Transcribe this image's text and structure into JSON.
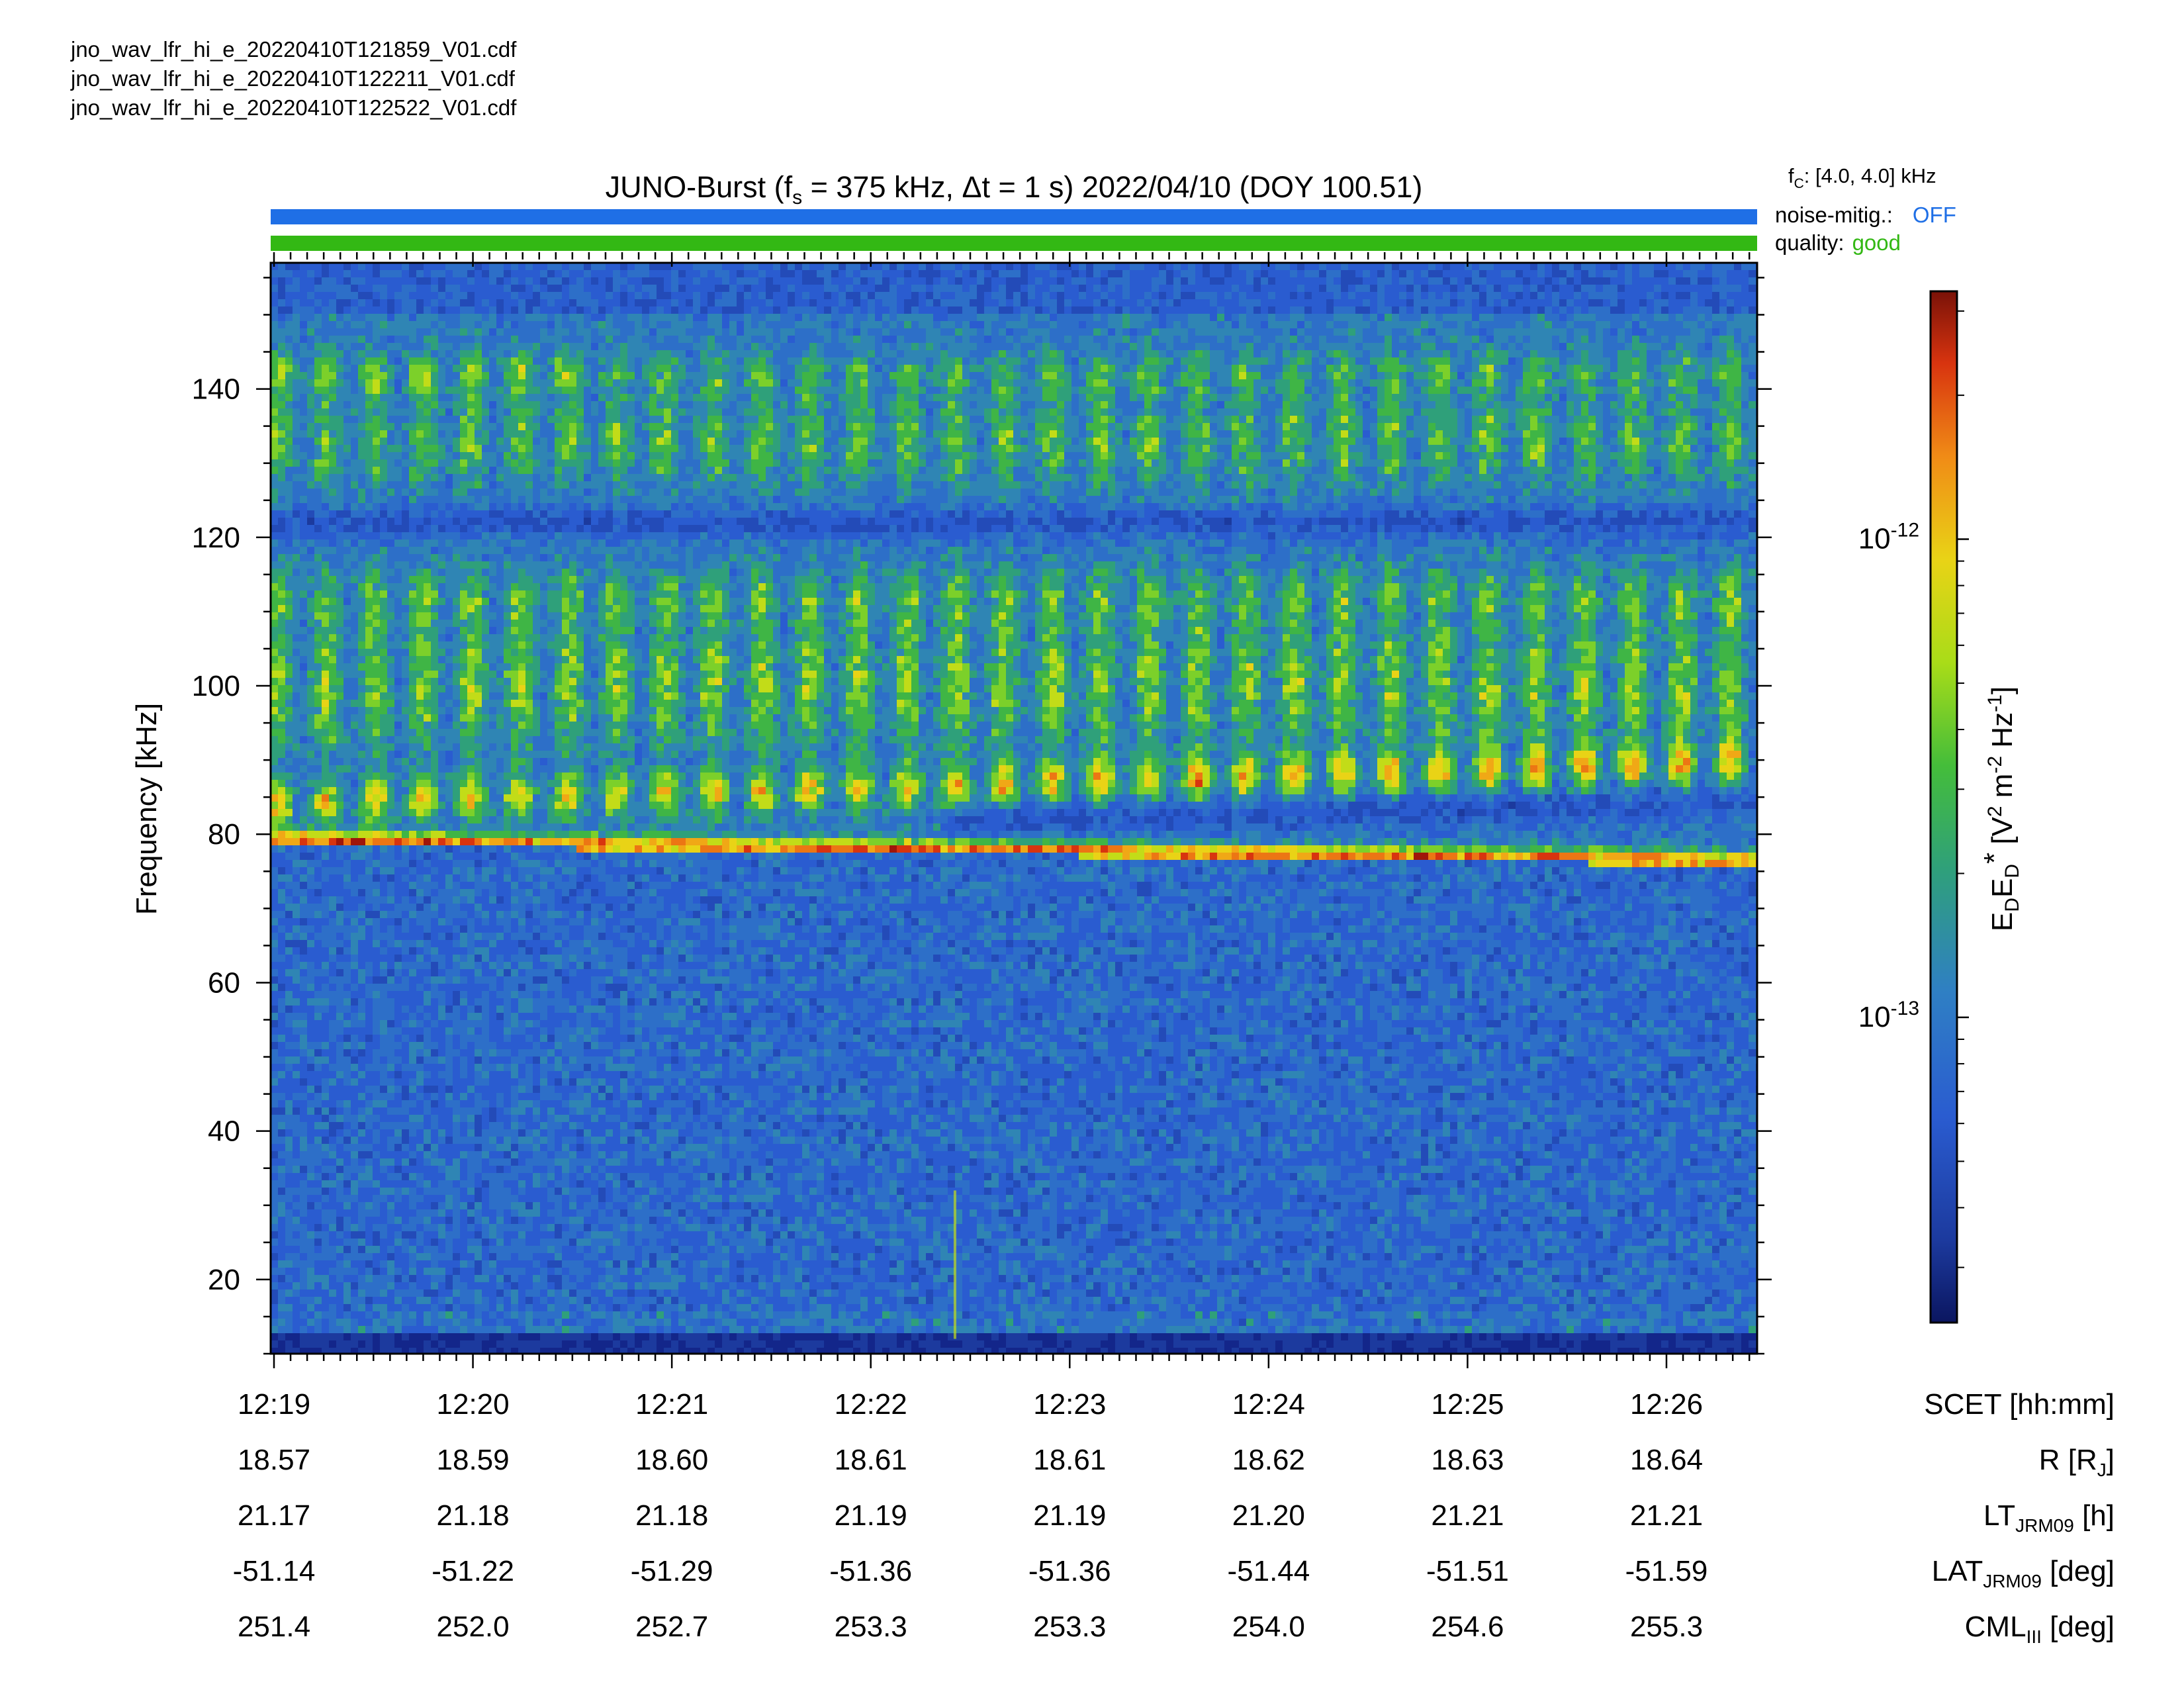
{
  "files": [
    "jno_wav_lfr_hi_e_20220410T121859_V01.cdf",
    "jno_wav_lfr_hi_e_20220410T122211_V01.cdf",
    "jno_wav_lfr_hi_e_20220410T122522_V01.cdf"
  ],
  "header": {
    "title_prefix": "JUNO-Burst (f",
    "title_sub": "s",
    "title_suffix": " = 375 kHz, Δt = 1 s)  2022/04/10 (DOY 100.51)",
    "fc_main": "f",
    "fc_sub": "C",
    "fc_value": ": [4.0, 4.0] kHz",
    "noise_label": "noise-mitig.:",
    "noise_value": "OFF",
    "quality_label": "quality:",
    "quality_value": "good"
  },
  "colors": {
    "noise_bar": "#1f6fe6",
    "quality_bar": "#33b814",
    "noise_text": "#1f6fe6",
    "quality_text": "#33b814"
  },
  "colorbar": {
    "label_main": "E",
    "label_sub1": "D",
    "label_e2": "E",
    "label_sub2": "D",
    "label_star": "*",
    "label_units_open": " [V",
    "label_sup1": "2",
    "label_units_mid": " m",
    "label_sup2": "-2",
    "label_units_hz": " Hz",
    "label_sup3": "-1",
    "label_units_close": "]",
    "ticks": [
      {
        "base": "10",
        "exp": "-12",
        "value": 1e-12
      },
      {
        "base": "10",
        "exp": "-13",
        "value": 1e-13
      }
    ],
    "range": [
      2.3e-14,
      3.3e-12
    ],
    "scale": "log"
  },
  "ephemeris": {
    "rows": [
      {
        "label_main": "SCET [hh:mm]",
        "label_sub": "",
        "label_tail": "",
        "values": [
          "12:19",
          "12:20",
          "12:21",
          "12:22",
          "12:23",
          "12:24",
          "12:25",
          "12:26"
        ]
      },
      {
        "label_main": "R [R",
        "label_sub": "J",
        "label_tail": "]",
        "values": [
          "18.57",
          "18.59",
          "18.60",
          "18.61",
          "18.61",
          "18.62",
          "18.63",
          "18.64"
        ]
      },
      {
        "label_main": "LT",
        "label_sub": "JRM09",
        "label_tail": " [h]",
        "values": [
          "21.17",
          "21.18",
          "21.18",
          "21.19",
          "21.19",
          "21.20",
          "21.21",
          "21.21"
        ]
      },
      {
        "label_main": "LAT",
        "label_sub": "JRM09",
        "label_tail": " [deg]",
        "values": [
          "-51.14",
          "-51.22",
          "-51.29",
          "-51.36",
          "-51.36",
          "-51.44",
          "-51.51",
          "-51.59"
        ]
      },
      {
        "label_main": "CML",
        "label_sub": "III",
        "label_tail": " [deg]",
        "values": [
          "251.4",
          "252.0",
          "252.7",
          "253.3",
          "253.3",
          "254.0",
          "254.6",
          "255.3"
        ]
      }
    ]
  },
  "chart_data": {
    "type": "heatmap",
    "title": "JUNO-Burst (fs = 375 kHz, Δt = 1 s)  2022/04/10 (DOY 100.51)",
    "xlabel": "SCET [hh:mm]",
    "ylabel": "Frequency [kHz]",
    "x_ticks": [
      "12:19",
      "12:20",
      "12:21",
      "12:22",
      "12:23",
      "12:24",
      "12:25",
      "12:26"
    ],
    "x_range": [
      "12:19:00",
      "12:26:59"
    ],
    "y_ticks": [
      20,
      40,
      60,
      80,
      100,
      120,
      140
    ],
    "y_range": [
      10,
      157
    ],
    "z_label": "EDED* [V2 m-2 Hz-1]",
    "z_scale": "log",
    "z_range": [
      2.3e-14,
      3.3e-12
    ],
    "features": [
      {
        "name": "emission lower edge",
        "freq_start_khz": 78.5,
        "freq_end_khz": 75.5
      },
      {
        "name": "band 82-90 kHz",
        "freq_start_khz": [
          82,
          88
        ],
        "freq_end_khz": [
          86,
          94
        ]
      },
      {
        "name": "band 90-120 kHz",
        "freq_range_khz": [
          90,
          120
        ]
      },
      {
        "name": "band 125-145 kHz",
        "freq_range_khz": [
          125,
          145
        ]
      },
      {
        "name": "intense patch",
        "time": "12:26:45",
        "freq_khz": 134
      }
    ]
  }
}
